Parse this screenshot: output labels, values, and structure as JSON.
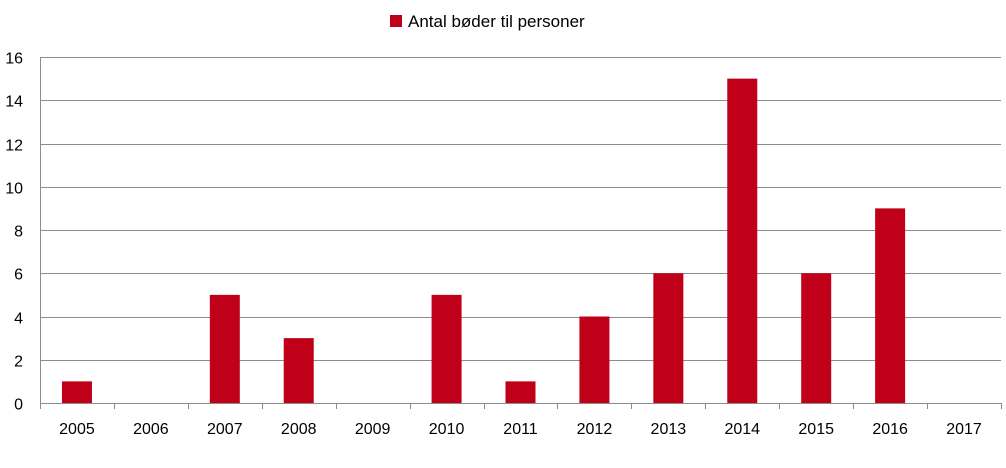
{
  "chart_data": {
    "type": "bar",
    "categories": [
      "2005",
      "2006",
      "2007",
      "2008",
      "2009",
      "2010",
      "2011",
      "2012",
      "2013",
      "2014",
      "2015",
      "2016",
      "2017"
    ],
    "series": [
      {
        "name": "Antal bøder til personer",
        "values": [
          1,
          0,
          5,
          3,
          0,
          5,
          1,
          4,
          6,
          15,
          6,
          9,
          0
        ],
        "color": "#c00018"
      }
    ],
    "y_ticks": [
      "0",
      "2",
      "4",
      "6",
      "8",
      "10",
      "12",
      "14",
      "16"
    ],
    "ylim": [
      0,
      16
    ],
    "grid": true,
    "legend_position": "top-center",
    "title": "",
    "xlabel": "",
    "ylabel": ""
  }
}
